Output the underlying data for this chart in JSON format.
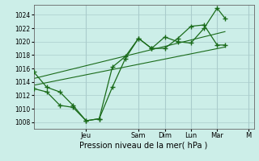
{
  "background_color": "#cceee8",
  "grid_color": "#aacccc",
  "line_color": "#1a6b1a",
  "xlabel": "Pression niveau de la mer( hPa )",
  "ylim": [
    1007,
    1025.5
  ],
  "yticks": [
    1008,
    1010,
    1012,
    1014,
    1016,
    1018,
    1020,
    1022,
    1024
  ],
  "xlim": [
    0,
    8.4
  ],
  "day_labels": [
    "Jeu",
    "Sam",
    "Dim",
    "Lun",
    "Mar",
    "M"
  ],
  "day_positions": [
    2.0,
    4.0,
    5.0,
    6.0,
    7.0,
    8.2
  ],
  "line1_x": [
    0.0,
    0.5,
    1.0,
    1.5,
    2.0,
    2.5,
    3.0,
    3.5,
    4.0,
    4.5,
    5.0,
    5.5,
    6.0,
    6.5,
    7.0,
    7.3
  ],
  "line1_y": [
    1015.5,
    1013.2,
    1012.5,
    1010.5,
    1008.2,
    1008.5,
    1013.2,
    1017.5,
    1020.5,
    1019.0,
    1019.0,
    1020.5,
    1022.3,
    1022.5,
    1019.5,
    1019.5
  ],
  "line2_x": [
    0.0,
    0.5,
    1.0,
    1.5,
    2.0,
    2.5,
    3.0,
    3.5,
    4.0,
    4.5,
    5.0,
    5.5,
    6.0,
    6.5,
    7.0,
    7.3
  ],
  "line2_y": [
    1013.0,
    1012.5,
    1010.5,
    1010.2,
    1008.2,
    1008.5,
    1016.2,
    1017.8,
    1020.5,
    1019.0,
    1020.7,
    1020.0,
    1019.8,
    1022.0,
    1025.0,
    1023.5
  ],
  "trend1_x": [
    0.0,
    7.3
  ],
  "trend1_y": [
    1013.5,
    1019.2
  ],
  "trend2_x": [
    0.0,
    7.3
  ],
  "trend2_y": [
    1014.5,
    1021.5
  ],
  "ylabel_fontsize": 5.5,
  "xlabel_fontsize": 7,
  "xtick_fontsize": 6
}
